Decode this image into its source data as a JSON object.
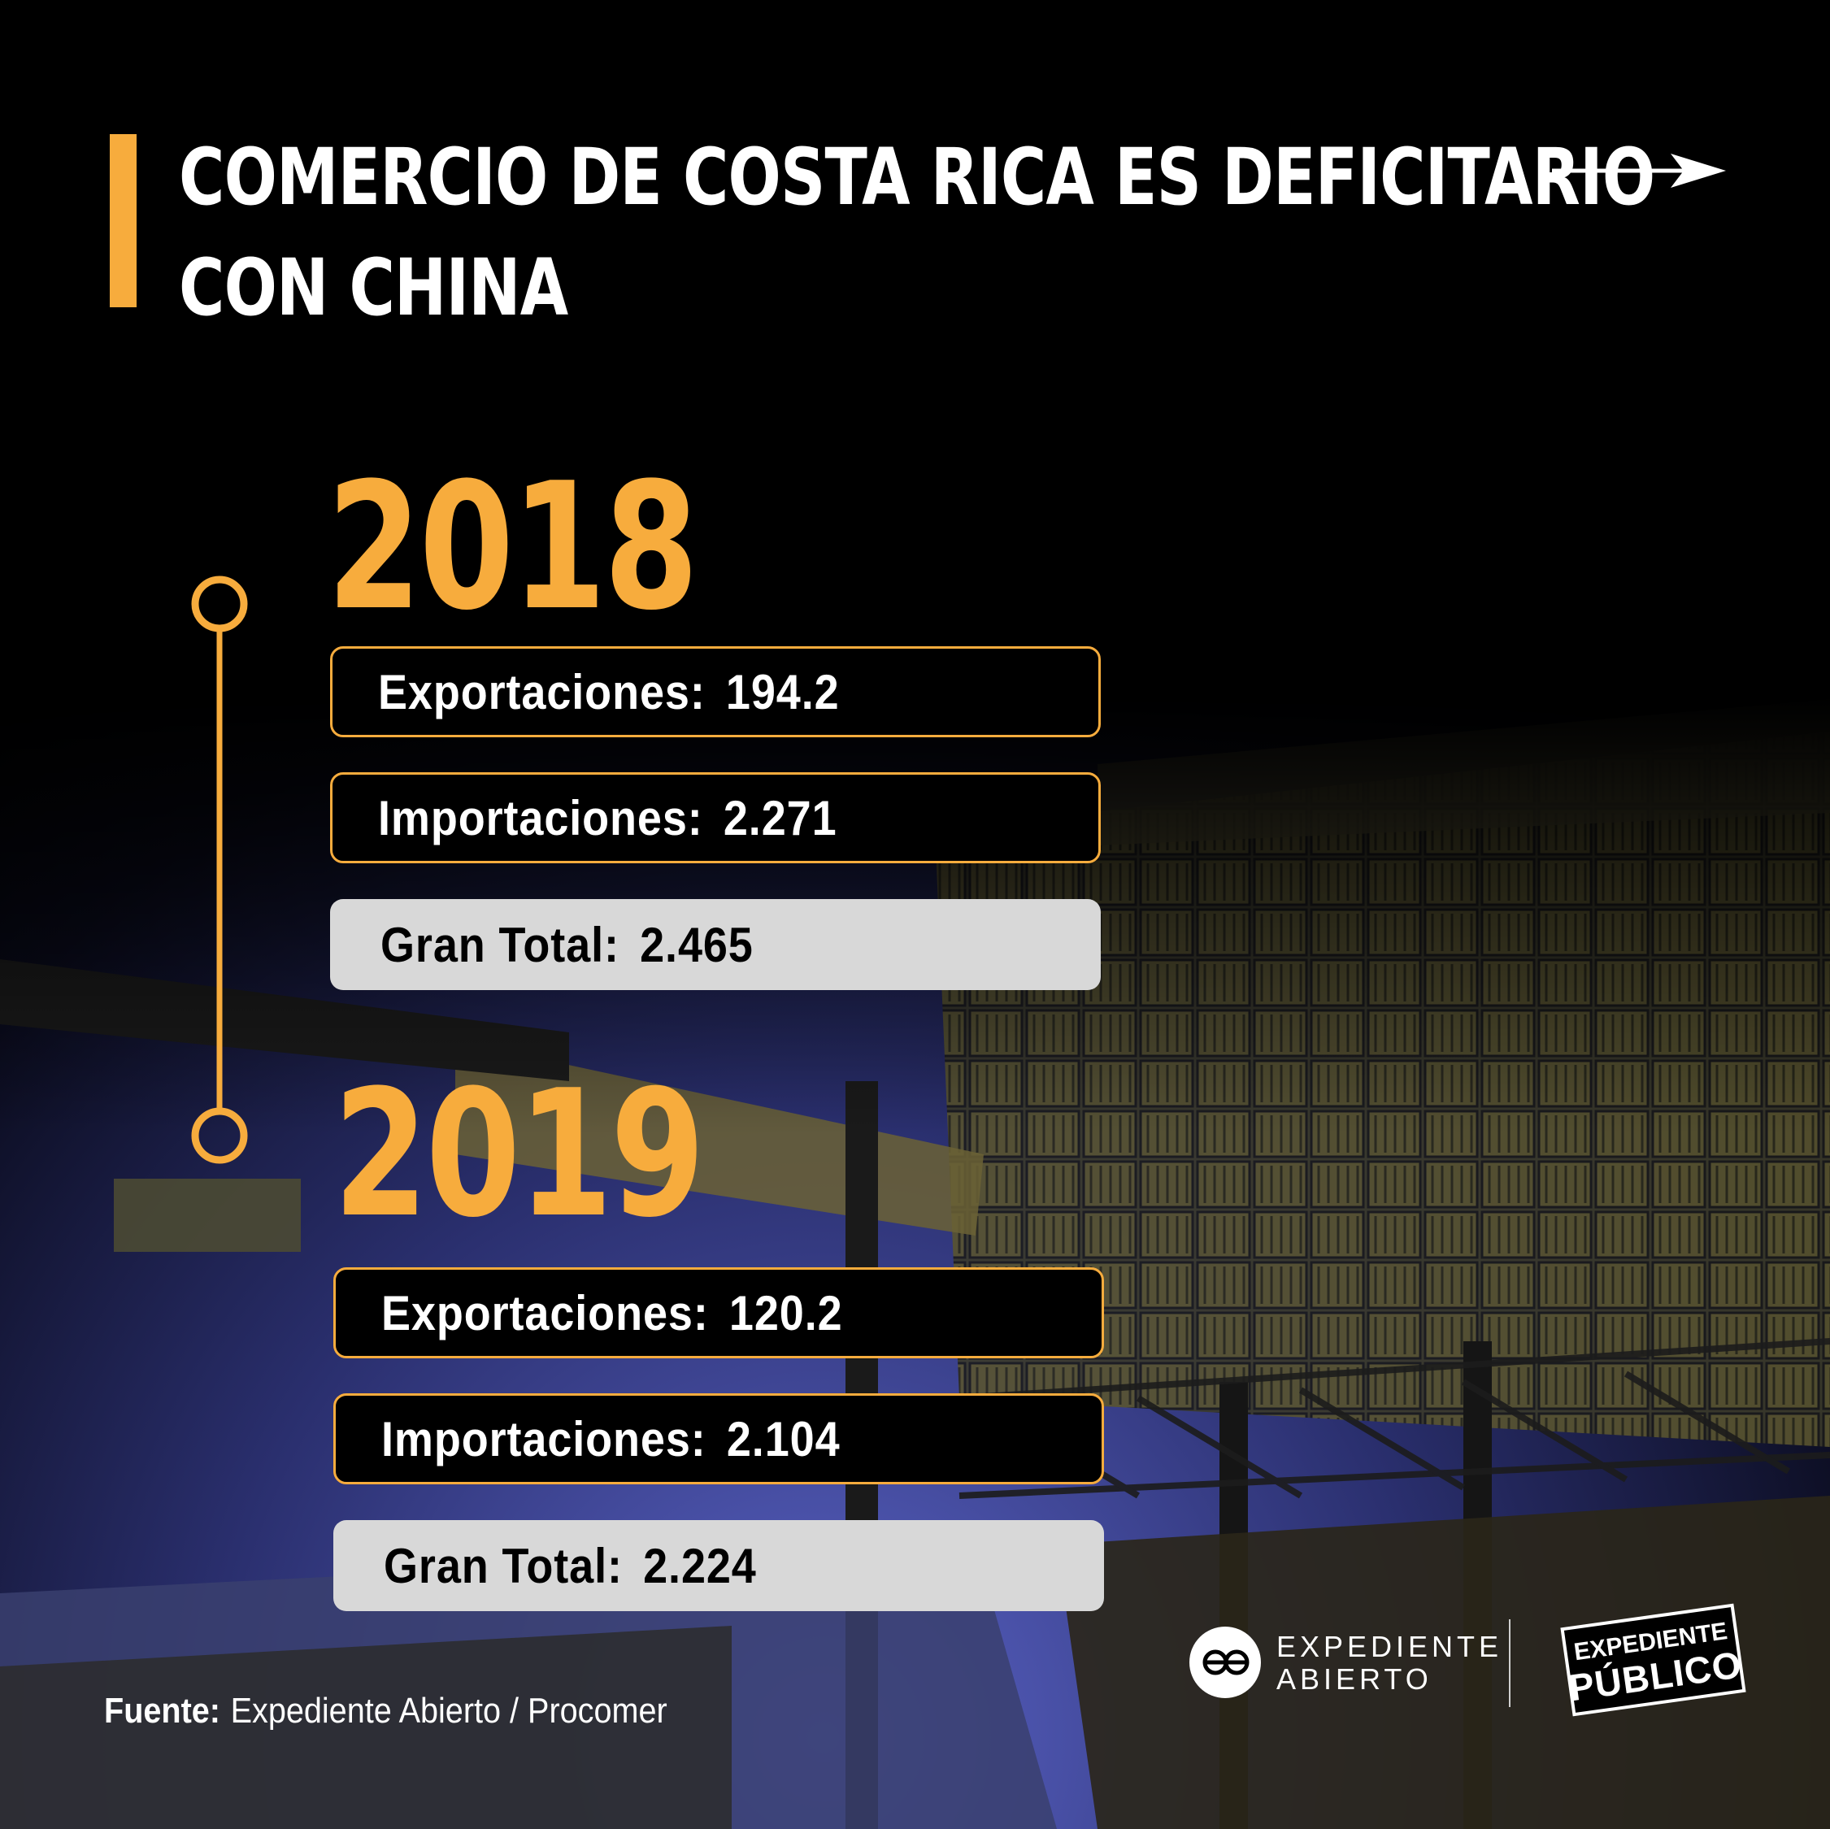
{
  "title": {
    "line1": "COMERCIO DE COSTA RICA ES DEFICITARIO",
    "line2": "CON CHINA"
  },
  "icons": {
    "arrow": "arrow-right-icon",
    "timeline_node": "timeline-circle-icon"
  },
  "colors": {
    "accent": "#f7ac3d",
    "background": "#000000",
    "total_box": "#d8d8d8",
    "text_light": "#ffffff"
  },
  "years": [
    {
      "year": "2018",
      "exports_label": "Exportaciones:",
      "exports_value": "194.2",
      "imports_label": "Importaciones:",
      "imports_value": "2.271",
      "total_label": "Gran Total:",
      "total_value": "2.465"
    },
    {
      "year": "2019",
      "exports_label": "Exportaciones:",
      "exports_value": "120.2",
      "imports_label": "Importaciones:",
      "imports_value": "2.104",
      "total_label": "Gran Total:",
      "total_value": "2.224"
    }
  ],
  "source": {
    "label": "Fuente:",
    "text": "Expediente Abierto / Procomer"
  },
  "logos": {
    "expediente_abierto_line1": "EXPEDIENTE",
    "expediente_abierto_line2": "ABIERTO",
    "expediente_publico_line1": "EXPEDIENTE",
    "expediente_publico_line2": "PÚBLICO"
  }
}
